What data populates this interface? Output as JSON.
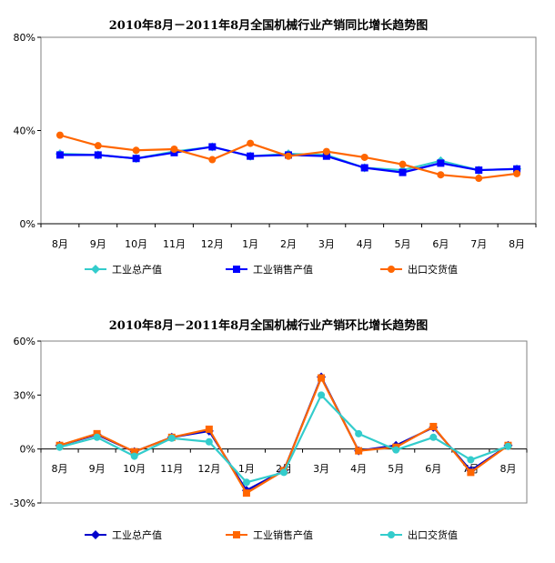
{
  "chart_data": [
    {
      "type": "line",
      "title": "2010年8月－2011年8月全国机械行业产销同比增长趋势图",
      "categories": [
        "8月",
        "9月",
        "10月",
        "11月",
        "12月",
        "1月",
        "2月",
        "3月",
        "4月",
        "5月",
        "6月",
        "7月",
        "8月"
      ],
      "ylim": [
        0,
        80
      ],
      "yticks": [
        "80%",
        "40%",
        "0%"
      ],
      "ytick_values": [
        80,
        40,
        0
      ],
      "grid": false,
      "legend_position": "bottom",
      "series": [
        {
          "name": "工业总产值",
          "color": "#33CCCC",
          "marker": "diamond",
          "values": [
            30,
            29.5,
            28,
            31,
            33,
            29,
            30,
            29.5,
            24,
            23,
            27,
            23,
            23.5
          ]
        },
        {
          "name": "工业销售产值",
          "color": "#0000FF",
          "marker": "square",
          "values": [
            29.5,
            29.5,
            28,
            30.5,
            33,
            29,
            29.5,
            29,
            24,
            22,
            26,
            23,
            23.5
          ]
        },
        {
          "name": "出口交货值",
          "color": "#FF6600",
          "marker": "circle",
          "values": [
            38,
            33.5,
            31.5,
            32,
            27.5,
            34.5,
            29,
            31,
            28.5,
            25.5,
            21,
            19.5,
            21.5
          ]
        }
      ]
    },
    {
      "type": "line",
      "title": "2010年8月－2011年8月全国机械行业产销环比增长趋势图",
      "categories": [
        "8月",
        "9月",
        "10月",
        "11月",
        "12月",
        "1月",
        "2月",
        "3月",
        "4月",
        "5月",
        "6月",
        "7月",
        "8月"
      ],
      "ylim": [
        -30,
        60
      ],
      "yticks": [
        "60%",
        "30%",
        "0%",
        "-30%"
      ],
      "ytick_values": [
        60,
        30,
        0,
        -30
      ],
      "grid": false,
      "legend_position": "bottom",
      "series": [
        {
          "name": "工业总产值",
          "color": "#0000CC",
          "marker": "diamond",
          "values": [
            2,
            8,
            -1.5,
            6.5,
            10,
            -23,
            -12,
            40,
            -1,
            2,
            12,
            -12,
            2
          ]
        },
        {
          "name": "工业销售产值",
          "color": "#FF6600",
          "marker": "square",
          "values": [
            2,
            8.5,
            -1.5,
            6.5,
            11,
            -24.5,
            -12,
            39.5,
            -1,
            1,
            12.5,
            -13,
            2
          ]
        },
        {
          "name": "出口交货值",
          "color": "#33CCCC",
          "marker": "circle",
          "values": [
            1,
            6.5,
            -4,
            6,
            4,
            -18.5,
            -13,
            30,
            8.5,
            -0.5,
            6.5,
            -6,
            1.5
          ]
        }
      ]
    }
  ]
}
